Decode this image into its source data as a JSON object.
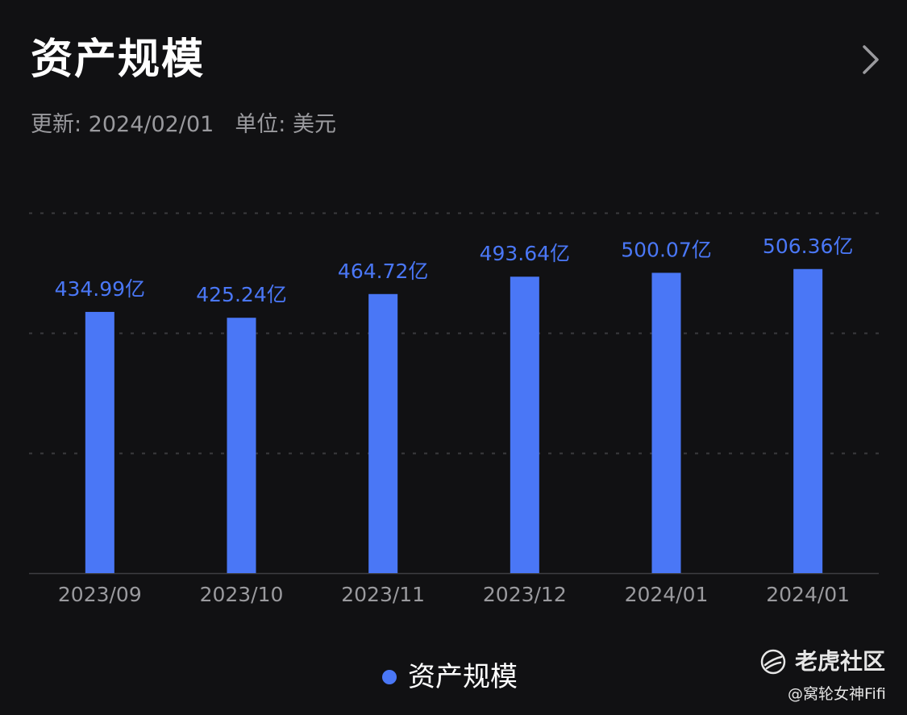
{
  "header": {
    "title": "资产规模",
    "updated": "更新: 2024/02/01",
    "unit": "单位: 美元"
  },
  "colors": {
    "background": "#111113",
    "bar": "#4a77f6",
    "label": "#4a77f6",
    "grid": "#3a3a3e",
    "tick": "#9a9a9e"
  },
  "chart_data": {
    "type": "bar",
    "title": "资产规模",
    "categories": [
      "2023/09",
      "2023/10",
      "2023/11",
      "2023/12",
      "2024/01",
      "2024/01"
    ],
    "series": [
      {
        "name": "资产规模",
        "values": [
          434.99,
          425.24,
          464.72,
          493.64,
          500.07,
          506.36
        ],
        "labels": [
          "434.99亿",
          "425.24亿",
          "464.72亿",
          "493.64亿",
          "500.07亿",
          "506.36亿"
        ]
      }
    ],
    "xlabel": "",
    "ylabel": "",
    "ylim": [
      0,
      600
    ],
    "grid": true,
    "legend": "bottom-center"
  },
  "legend": {
    "label": "资产规模"
  },
  "watermark": {
    "brand": "老虎社区",
    "handle": "@窝轮女神Fifi"
  }
}
